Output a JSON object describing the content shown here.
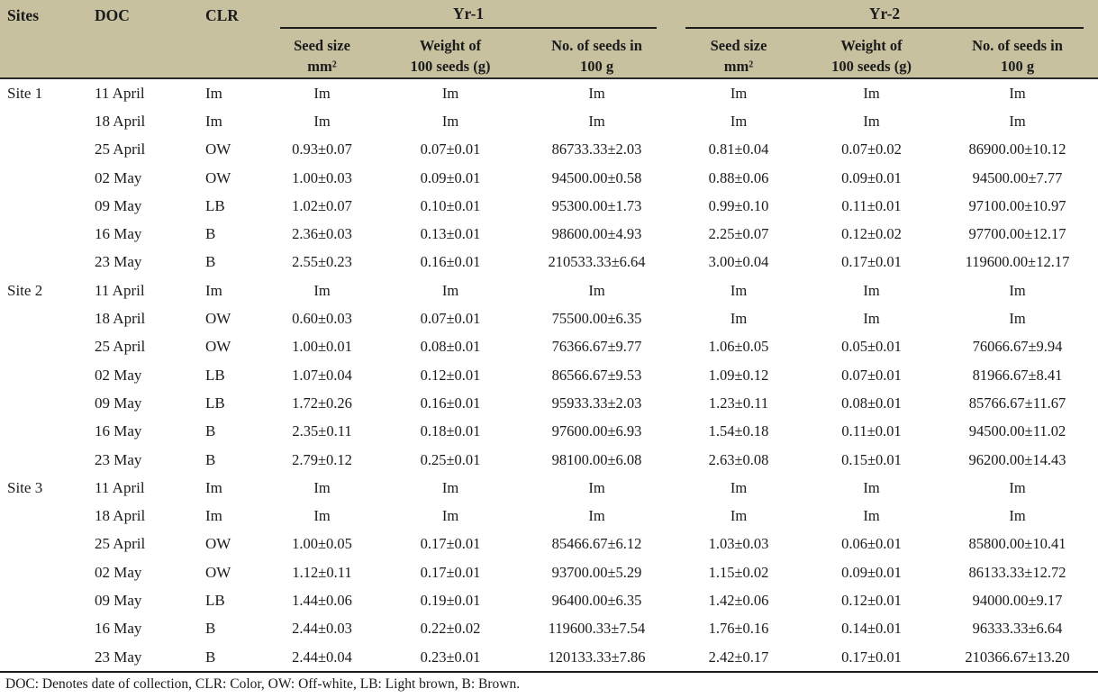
{
  "page": {
    "header_bg": "#c7c1a0",
    "text_color": "#1b1b1b"
  },
  "table": {
    "col_headers": {
      "sites": "Sites",
      "doc": "DOC",
      "clr": "CLR",
      "yr1": "Yr-1",
      "yr2": "Yr-2"
    },
    "sub_headers": [
      {
        "line1": "Seed size",
        "line2": "mm²"
      },
      {
        "line1": "Weight of",
        "line2": "100 seeds (g)"
      },
      {
        "line1": "No. of seeds in",
        "line2": "100 g"
      }
    ],
    "rows": [
      {
        "cells": [
          "Site 1",
          "11 April",
          "Im",
          "Im",
          "Im",
          "Im",
          "Im",
          "Im",
          "Im"
        ]
      },
      {
        "cells": [
          "",
          "18 April",
          "Im",
          "Im",
          "Im",
          "Im",
          "Im",
          "Im",
          "Im"
        ]
      },
      {
        "cells": [
          "",
          "25 April",
          "OW",
          "0.93±0.07",
          "0.07±0.01",
          "86733.33±2.03",
          "0.81±0.04",
          "0.07±0.02",
          "86900.00±10.12"
        ]
      },
      {
        "cells": [
          "",
          "02 May",
          "OW",
          "1.00±0.03",
          "0.09±0.01",
          "94500.00±0.58",
          "0.88±0.06",
          "0.09±0.01",
          "94500.00±7.77"
        ]
      },
      {
        "cells": [
          "",
          "09 May",
          "LB",
          "1.02±0.07",
          "0.10±0.01",
          "95300.00±1.73",
          "0.99±0.10",
          "0.11±0.01",
          "97100.00±10.97"
        ]
      },
      {
        "cells": [
          "",
          "16 May",
          "B",
          "2.36±0.03",
          "0.13±0.01",
          "98600.00±4.93",
          "2.25±0.07",
          "0.12±0.02",
          "97700.00±12.17"
        ]
      },
      {
        "cells": [
          "",
          "23 May",
          "B",
          "2.55±0.23",
          "0.16±0.01",
          "210533.33±6.64",
          "3.00±0.04",
          "0.17±0.01",
          "119600.00±12.17"
        ]
      },
      {
        "cells": [
          "Site 2",
          "11 April",
          "Im",
          "Im",
          "Im",
          "Im",
          "Im",
          "Im",
          "Im"
        ]
      },
      {
        "cells": [
          "",
          "18 April",
          "OW",
          "0.60±0.03",
          "0.07±0.01",
          "75500.00±6.35",
          "Im",
          "Im",
          "Im"
        ]
      },
      {
        "cells": [
          "",
          "25 April",
          "OW",
          "1.00±0.01",
          "0.08±0.01",
          "76366.67±9.77",
          "1.06±0.05",
          "0.05±0.01",
          "76066.67±9.94"
        ]
      },
      {
        "cells": [
          "",
          "02 May",
          "LB",
          "1.07±0.04",
          "0.12±0.01",
          "86566.67±9.53",
          "1.09±0.12",
          "0.07±0.01",
          "81966.67±8.41"
        ]
      },
      {
        "cells": [
          "",
          "09 May",
          "LB",
          "1.72±0.26",
          "0.16±0.01",
          "95933.33±2.03",
          "1.23±0.11",
          "0.08±0.01",
          "85766.67±11.67"
        ]
      },
      {
        "cells": [
          "",
          "16 May",
          "B",
          "2.35±0.11",
          "0.18±0.01",
          "97600.00±6.93",
          "1.54±0.18",
          "0.11±0.01",
          "94500.00±11.02"
        ]
      },
      {
        "cells": [
          "",
          "23 May",
          "B",
          "2.79±0.12",
          "0.25±0.01",
          "98100.00±6.08",
          "2.63±0.08",
          "0.15±0.01",
          "96200.00±14.43"
        ]
      },
      {
        "cells": [
          "Site 3",
          "11 April",
          "Im",
          "Im",
          "Im",
          "Im",
          "Im",
          "Im",
          "Im"
        ]
      },
      {
        "cells": [
          "",
          "18 April",
          "Im",
          "Im",
          "Im",
          "Im",
          "Im",
          "Im",
          "Im"
        ]
      },
      {
        "cells": [
          "",
          "25 April",
          "OW",
          "1.00±0.05",
          "0.17±0.01",
          "85466.67±6.12",
          "1.03±0.03",
          "0.06±0.01",
          "85800.00±10.41"
        ]
      },
      {
        "cells": [
          "",
          "02 May",
          "OW",
          "1.12±0.11",
          "0.17±0.01",
          "93700.00±5.29",
          "1.15±0.02",
          "0.09±0.01",
          "86133.33±12.72"
        ]
      },
      {
        "cells": [
          "",
          "09 May",
          "LB",
          "1.44±0.06",
          "0.19±0.01",
          "96400.00±6.35",
          "1.42±0.06",
          "0.12±0.01",
          "94000.00±9.17"
        ]
      },
      {
        "cells": [
          "",
          "16 May",
          "B",
          "2.44±0.03",
          "0.22±0.02",
          "119600.33±7.54",
          "1.76±0.16",
          "0.14±0.01",
          "96333.33±6.64"
        ]
      },
      {
        "cells": [
          "",
          "23 May",
          "B",
          "2.44±0.04",
          "0.23±0.01",
          "120133.33±7.86",
          "2.42±0.17",
          "0.17±0.01",
          "210366.67±13.20"
        ]
      }
    ],
    "footnote": "DOC: Denotes date of collection, CLR: Color, OW: Off-white, LB: Light brown, B: Brown."
  }
}
